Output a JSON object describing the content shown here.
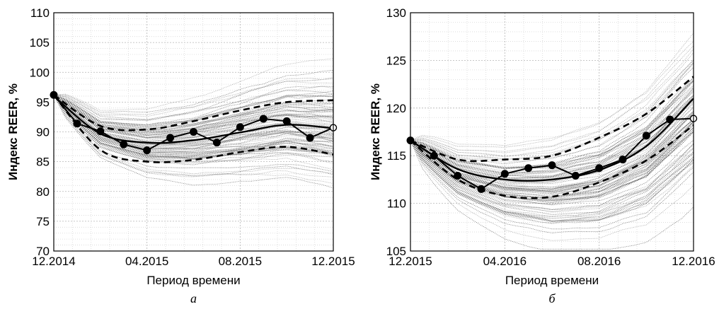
{
  "chart_data": [
    {
      "type": "line",
      "panel_caption": "а",
      "xlabel": "Период времени",
      "ylabel": "Индекс REER, %",
      "ylim": [
        70,
        110
      ],
      "yticks": [
        70,
        75,
        80,
        85,
        90,
        95,
        100,
        105,
        110
      ],
      "x_tick_labels": [
        "12.2014",
        "04.2015",
        "08.2015",
        "12.2015"
      ],
      "x_months": 12,
      "grid": true,
      "fan_start": 96.2,
      "fan_end_spread": [
        76,
        106
      ],
      "series": [
        {
          "role": "actual",
          "style": "solid-with-markers",
          "x": [
            0,
            1,
            2,
            3,
            4,
            5,
            6,
            7,
            8,
            9,
            10,
            11,
            12
          ],
          "values": [
            96.2,
            91.4,
            90.1,
            87.9,
            86.9,
            89.0,
            90.0,
            88.2,
            90.8,
            92.2,
            91.8,
            89.0,
            90.7
          ]
        },
        {
          "role": "trend",
          "style": "solid-smooth",
          "x": [
            0,
            2,
            4,
            6,
            8,
            10,
            12
          ],
          "values": [
            96.0,
            89.7,
            88.2,
            88.6,
            89.9,
            91.2,
            90.6
          ]
        },
        {
          "role": "upper-band",
          "style": "dashed",
          "x": [
            0,
            2,
            4,
            6,
            8,
            10,
            12
          ],
          "values": [
            96.2,
            91.0,
            90.4,
            91.8,
            93.6,
            95.0,
            95.3
          ]
        },
        {
          "role": "lower-band",
          "style": "dashed",
          "x": [
            0,
            2,
            4,
            6,
            8,
            10,
            12
          ],
          "values": [
            96.2,
            87.0,
            85.0,
            85.3,
            86.6,
            87.5,
            86.2
          ]
        }
      ]
    },
    {
      "type": "line",
      "panel_caption": "б",
      "xlabel": "Период времени",
      "ylabel": "Индекс REER, %",
      "ylim": [
        105,
        130
      ],
      "yticks": [
        105,
        110,
        115,
        120,
        125,
        130
      ],
      "x_tick_labels": [
        "12.2015",
        "04.2016",
        "08.2016",
        "12.2016"
      ],
      "x_months": 12,
      "grid": true,
      "fan_start": 116.6,
      "fan_end_spread": [
        109,
        130
      ],
      "series": [
        {
          "role": "actual",
          "style": "solid-with-markers",
          "x": [
            0,
            1,
            2,
            3,
            4,
            5,
            6,
            7,
            8,
            9,
            10,
            11,
            12
          ],
          "values": [
            116.6,
            115.0,
            112.9,
            111.5,
            113.1,
            113.7,
            114.0,
            112.9,
            113.7,
            114.6,
            117.1,
            118.8,
            118.9
          ]
        },
        {
          "role": "trend",
          "style": "solid-smooth",
          "x": [
            0,
            2,
            4,
            6,
            8,
            10,
            12
          ],
          "values": [
            116.6,
            113.6,
            112.5,
            112.5,
            113.5,
            116.0,
            121.0
          ]
        },
        {
          "role": "upper-band",
          "style": "dashed",
          "x": [
            0,
            2,
            4,
            6,
            8,
            10,
            12
          ],
          "values": [
            116.6,
            114.6,
            114.6,
            115.0,
            116.9,
            119.4,
            123.3
          ]
        },
        {
          "role": "lower-band",
          "style": "dashed",
          "x": [
            0,
            2,
            4,
            6,
            8,
            10,
            12
          ],
          "values": [
            116.6,
            112.5,
            110.8,
            110.7,
            112.2,
            114.5,
            118.2
          ]
        }
      ]
    }
  ]
}
